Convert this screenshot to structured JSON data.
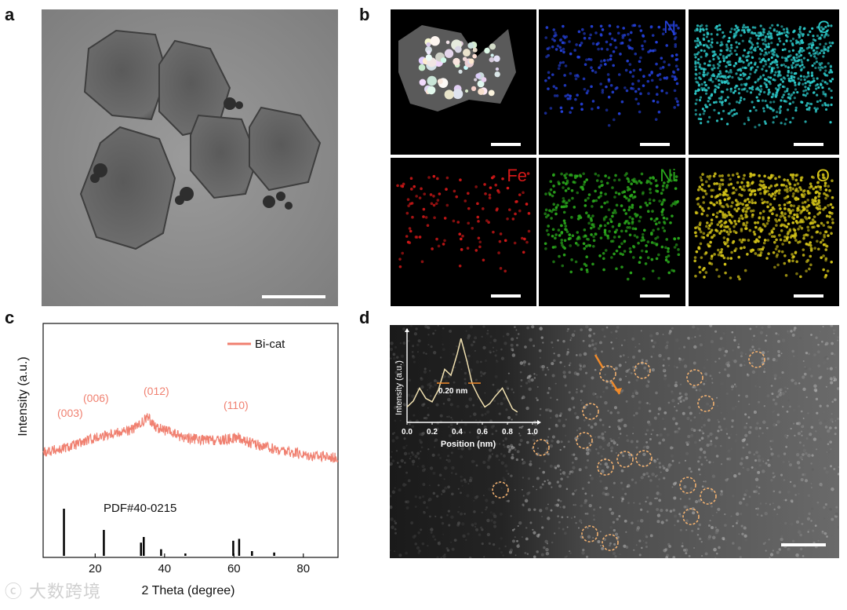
{
  "panels": {
    "a": {
      "letter": "a"
    },
    "b": {
      "letter": "b",
      "maps": [
        {
          "label": "",
          "color": "#ffffff"
        },
        {
          "label": "N",
          "color": "#2440d8"
        },
        {
          "label": "C",
          "color": "#2cc8c8"
        },
        {
          "label": "Fe",
          "color": "#d41818"
        },
        {
          "label": "Ni",
          "color": "#2aa81c"
        },
        {
          "label": "O",
          "color": "#d4c418"
        }
      ]
    },
    "c": {
      "letter": "c"
    },
    "d": {
      "letter": "d"
    }
  },
  "watermark": "大数跨境",
  "chart_data": [
    {
      "type": "line",
      "panel": "c",
      "xlabel": "2 Theta (degree)",
      "ylabel": "Intensity (a.u.)",
      "xlim": [
        5,
        90
      ],
      "xticks": [
        20,
        40,
        60,
        80
      ],
      "legend": {
        "position": "top-right",
        "entries": [
          "Bi-cat"
        ]
      },
      "series": [
        {
          "name": "Bi-cat",
          "color": "#f08070",
          "x": [
            5,
            10,
            15,
            20,
            25,
            30,
            33,
            35,
            38,
            45,
            50,
            55,
            58,
            61,
            64,
            70,
            75,
            80,
            85,
            90
          ],
          "y": [
            0.2,
            0.24,
            0.33,
            0.43,
            0.52,
            0.56,
            0.65,
            0.78,
            0.6,
            0.45,
            0.4,
            0.38,
            0.4,
            0.44,
            0.36,
            0.26,
            0.2,
            0.15,
            0.12,
            0.1
          ]
        }
      ],
      "annotations": [
        "(003)",
        "(006)",
        "(012)",
        "(110)"
      ],
      "reference": {
        "label": "PDF#40-0215",
        "sticks": [
          [
            11,
            1.0
          ],
          [
            22.5,
            0.55
          ],
          [
            33.2,
            0.28
          ],
          [
            34,
            0.4
          ],
          [
            39,
            0.14
          ],
          [
            46,
            0.05
          ],
          [
            59.8,
            0.32
          ],
          [
            61.5,
            0.36
          ],
          [
            65.2,
            0.1
          ],
          [
            71.6,
            0.07
          ]
        ]
      }
    },
    {
      "type": "line",
      "panel": "d-inset",
      "xlabel": "Position (nm)",
      "ylabel": "Intensity (a.u.)",
      "xlim": [
        0,
        1.0
      ],
      "xticks": [
        "0.0",
        "0.2",
        "0.4",
        "0.6",
        "0.8",
        "1.0"
      ],
      "annotation": "0.20 nm",
      "series": [
        {
          "name": "",
          "color": "#f0e0b0",
          "x": [
            0.0,
            0.05,
            0.1,
            0.15,
            0.2,
            0.25,
            0.3,
            0.35,
            0.4,
            0.43,
            0.48,
            0.52,
            0.57,
            0.62,
            0.66,
            0.7,
            0.76,
            0.8,
            0.84,
            0.88
          ],
          "y": [
            0.18,
            0.25,
            0.4,
            0.28,
            0.24,
            0.38,
            0.62,
            0.55,
            0.8,
            0.98,
            0.7,
            0.45,
            0.3,
            0.18,
            0.22,
            0.3,
            0.4,
            0.28,
            0.16,
            0.12
          ]
        }
      ]
    }
  ]
}
